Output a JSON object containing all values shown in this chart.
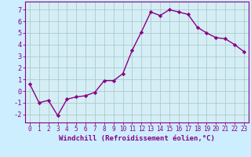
{
  "x": [
    0,
    1,
    2,
    3,
    4,
    5,
    6,
    7,
    8,
    9,
    10,
    11,
    12,
    13,
    14,
    15,
    16,
    17,
    18,
    19,
    20,
    21,
    22,
    23
  ],
  "y": [
    0.6,
    -1.0,
    -0.8,
    -2.1,
    -0.7,
    -0.5,
    -0.4,
    -0.1,
    0.9,
    0.9,
    1.5,
    3.5,
    5.1,
    6.8,
    6.5,
    7.0,
    6.8,
    6.6,
    5.5,
    5.0,
    4.6,
    4.5,
    4.0,
    3.4
  ],
  "line_color": "#880088",
  "marker": "D",
  "marker_size": 2.2,
  "line_width": 1.0,
  "xlabel": "Windchill (Refroidissement éolien,°C)",
  "xlabel_fontsize": 6.5,
  "ylabel_ticks": [
    -2,
    -1,
    0,
    1,
    2,
    3,
    4,
    5,
    6,
    7
  ],
  "xticks": [
    0,
    1,
    2,
    3,
    4,
    5,
    6,
    7,
    8,
    9,
    10,
    11,
    12,
    13,
    14,
    15,
    16,
    17,
    18,
    19,
    20,
    21,
    22,
    23
  ],
  "xlim": [
    -0.5,
    23.5
  ],
  "ylim": [
    -2.7,
    7.7
  ],
  "bg_color": "#cceeff",
  "plot_bg_color": "#d5eef5",
  "grid_color": "#aacccc",
  "tick_color": "#880088",
  "spine_color": "#880088",
  "tick_fontsize": 5.5,
  "ytick_fontsize": 6.2
}
